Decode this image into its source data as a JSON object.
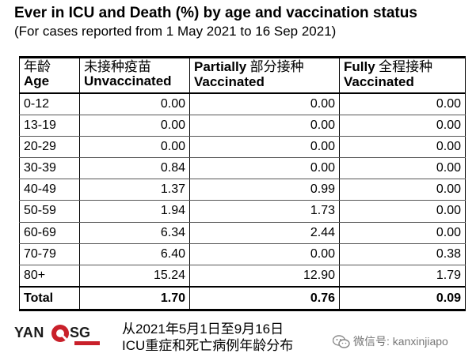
{
  "header": {
    "title": "Ever in ICU and Death (%) by age and vaccination status",
    "subtitle": "(For cases reported from 1 May 2021 to 16 Sep 2021)"
  },
  "table": {
    "columns": [
      {
        "cn": "年龄",
        "en": "Age"
      },
      {
        "cn": "未接种疫苗",
        "en": "Unvaccinated"
      },
      {
        "cn": "部分接种",
        "en_top": "Partially",
        "en": "Vaccinated"
      },
      {
        "cn": "全程接种",
        "en_top": "Fully",
        "en": "Vaccinated"
      }
    ]
  },
  "chart_data": {
    "type": "table",
    "title": "Ever in ICU and Death (%) by age and vaccination status",
    "subtitle": "(For cases reported from 1 May 2021 to 16 Sep 2021)",
    "columns": [
      "Age",
      "Unvaccinated",
      "Partially Vaccinated",
      "Fully Vaccinated"
    ],
    "rows": [
      {
        "age": "0-12",
        "values": [
          "0.00",
          "0.00",
          "0.00"
        ]
      },
      {
        "age": "13-19",
        "values": [
          "0.00",
          "0.00",
          "0.00"
        ]
      },
      {
        "age": "20-29",
        "values": [
          "0.00",
          "0.00",
          "0.00"
        ]
      },
      {
        "age": "30-39",
        "values": [
          "0.84",
          "0.00",
          "0.00"
        ]
      },
      {
        "age": "40-49",
        "values": [
          "1.37",
          "0.99",
          "0.00"
        ]
      },
      {
        "age": "50-59",
        "values": [
          "1.94",
          "1.73",
          "0.00"
        ]
      },
      {
        "age": "60-69",
        "values": [
          "6.34",
          "2.44",
          "0.00"
        ]
      },
      {
        "age": "70-79",
        "values": [
          "6.40",
          "0.00",
          "0.38"
        ]
      },
      {
        "age": "80+",
        "values": [
          "15.24",
          "12.90",
          "1.79"
        ]
      }
    ],
    "total": {
      "age": "Total",
      "values": [
        "1.70",
        "0.76",
        "0.09"
      ]
    }
  },
  "footer": {
    "logo_left": "YAN",
    "logo_right": "SG",
    "caption_line1": "从2021年5月1日至9月16日",
    "caption_line2": "ICU重症和死亡病例年龄分布",
    "wechat": "微信号: kanxinjiapo",
    "accent_color": "#c9202a"
  }
}
